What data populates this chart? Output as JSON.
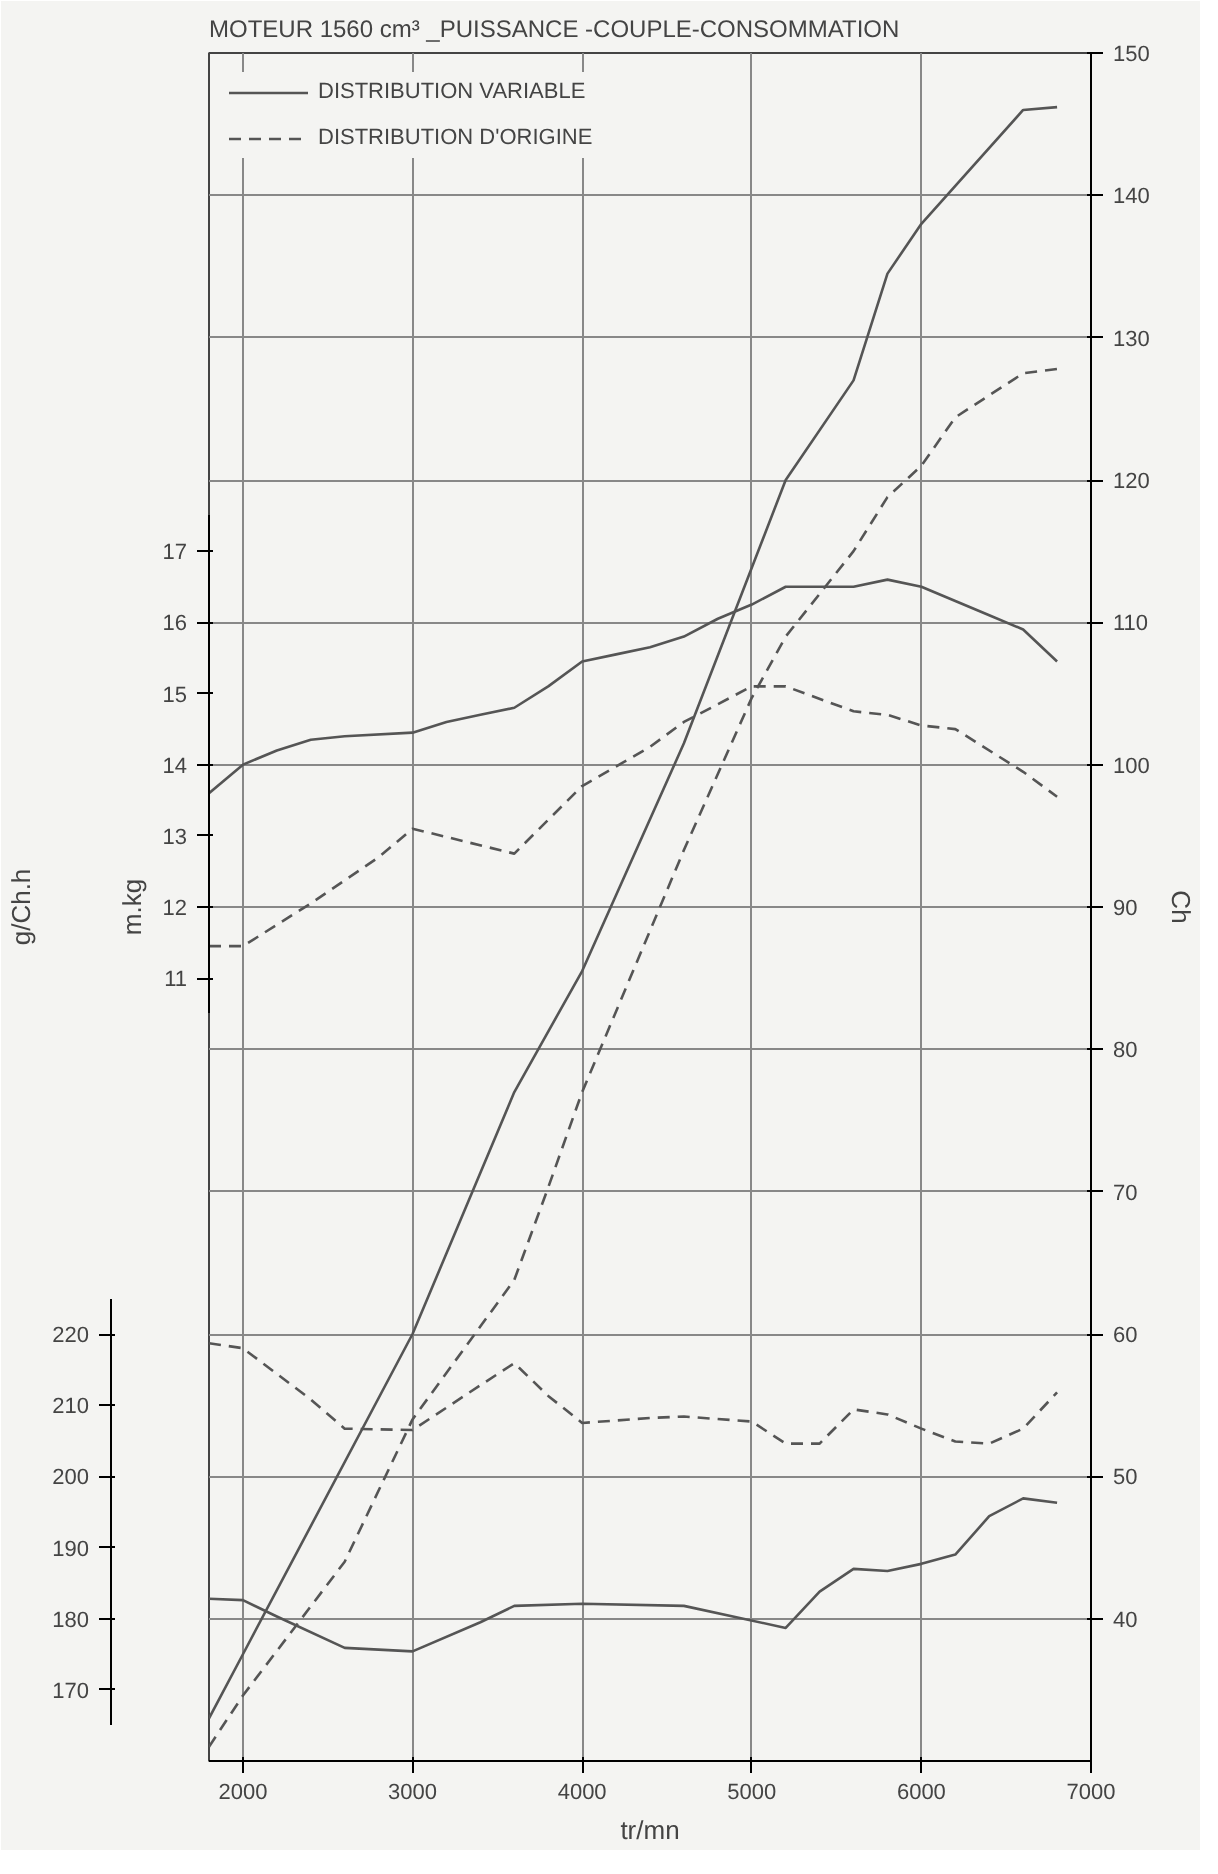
{
  "chart_data": {
    "type": "line",
    "title": "MOTEUR 1560 cm³ _PUISSANCE -COUPLE-CONSOMMATION",
    "xlabel": "tr/mn",
    "ylabel": "Ch",
    "y2label": "m.kg",
    "y3label": "g/Ch.h",
    "xlim": [
      1800,
      7000
    ],
    "xticks": [
      2000,
      3000,
      4000,
      5000,
      6000,
      7000
    ],
    "ylim": [
      30,
      150
    ],
    "yticks": [
      40,
      50,
      60,
      70,
      80,
      90,
      100,
      110,
      120,
      130,
      140,
      150
    ],
    "y2lim": [
      0,
      24
    ],
    "y2ticks": [
      11,
      12,
      13,
      14,
      15,
      16,
      17
    ],
    "y3lim": [
      160,
      400
    ],
    "y3ticks": [
      170,
      180,
      190,
      200,
      210,
      220
    ],
    "grid": true,
    "legend": "top left",
    "marker": "none",
    "series": [
      {
        "name": "DISTRIBUTION VARIABLE",
        "color": "#555555",
        "line_style": "solid",
        "x": [
          1800,
          2000,
          3000,
          3600,
          4000,
          4600,
          5200,
          5600,
          5800,
          6000,
          6600,
          6800
        ],
        "values": [
          33,
          37.5,
          60,
          77,
          85.5,
          101.5,
          120,
          127,
          134.5,
          138,
          146,
          146.2
        ]
      },
      {
        "name": "DISTRIBUTION D'ORIGINE",
        "color": "#555555",
        "line_style": "dashed",
        "x": [
          1800,
          2000,
          2600,
          3000,
          3600,
          3800,
          4000,
          4600,
          5000,
          5200,
          5600,
          5800,
          6000,
          6200,
          6600,
          6800
        ],
        "values": [
          31,
          34.6,
          44,
          54,
          63.8,
          70.3,
          77,
          94,
          104.7,
          109,
          115,
          118.8,
          121,
          124.4,
          127.5,
          127.8
        ]
      },
      {
        "color": "#555555",
        "line_style": "solid",
        "axis": "y2",
        "x": [
          1800,
          2000,
          2200,
          2400,
          2600,
          3000,
          3200,
          3400,
          3600,
          3800,
          4000,
          4200,
          4400,
          4600,
          4800,
          5000,
          5200,
          5400,
          5600,
          5800,
          6000,
          6200,
          6400,
          6600,
          6800
        ],
        "values": [
          13.6,
          14.0,
          14.2,
          14.35,
          14.4,
          14.45,
          14.6,
          14.7,
          14.8,
          15.1,
          15.45,
          15.55,
          15.65,
          15.8,
          16.05,
          16.25,
          16.5,
          16.5,
          16.5,
          16.6,
          16.5,
          16.3,
          16.1,
          15.9,
          15.45
        ]
      },
      {
        "color": "#555555",
        "line_style": "dashed",
        "axis": "y2",
        "x": [
          1800,
          2000,
          2400,
          2800,
          3000,
          3600,
          4000,
          4400,
          4600,
          5000,
          5200,
          5600,
          5800,
          6000,
          6200,
          6600,
          6800
        ],
        "values": [
          11.45,
          11.45,
          12.05,
          12.7,
          13.1,
          12.75,
          13.7,
          14.25,
          14.6,
          15.1,
          15.1,
          14.75,
          14.7,
          14.55,
          14.5,
          13.9,
          13.55
        ]
      },
      {
        "color": "#555555",
        "line_style": "solid",
        "axis": "y3",
        "x": [
          1800,
          2000,
          2200,
          2600,
          3000,
          3400,
          3600,
          4000,
          4600,
          5200,
          5400,
          5600,
          5800,
          6000,
          6200,
          6400,
          6600,
          6800
        ],
        "values": [
          182.8,
          182.6,
          180.3,
          175.9,
          175.4,
          179.5,
          181.8,
          182.1,
          181.8,
          178.7,
          183.8,
          187,
          186.7,
          187.7,
          189,
          194.4,
          196.9,
          196.3
        ]
      },
      {
        "color": "#555555",
        "line_style": "dashed",
        "axis": "y3",
        "x": [
          1800,
          2000,
          2400,
          2600,
          3000,
          3400,
          3600,
          3800,
          4000,
          4400,
          4600,
          5000,
          5200,
          5400,
          5600,
          5800,
          6000,
          6200,
          6400,
          6600,
          6800
        ],
        "values": [
          218.7,
          218,
          210.8,
          206.7,
          206.5,
          212.8,
          215.9,
          211.3,
          207.5,
          208.2,
          208.4,
          207.7,
          204.6,
          204.6,
          209.4,
          208.7,
          206.7,
          204.9,
          204.6,
          206.7,
          211.8
        ]
      }
    ]
  }
}
